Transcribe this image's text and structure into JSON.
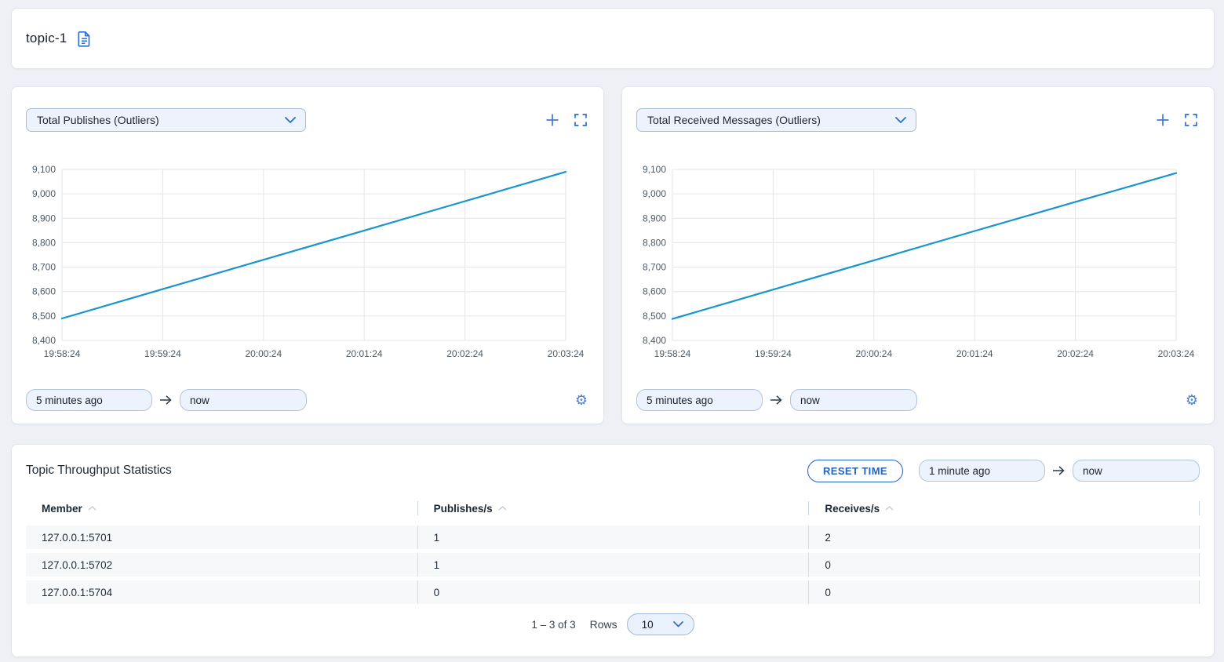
{
  "colors": {
    "accent": "#2e6fd0",
    "line": "#1795ce",
    "page_bg": "#eef0f5",
    "grid": "#e3e6ea",
    "axis_text": "#4f5a64"
  },
  "topbar": {
    "title": "topic-1"
  },
  "charts": [
    {
      "selector_label": "Total Publishes (Outliers)",
      "time_from": "5 minutes ago",
      "time_to": "now"
    },
    {
      "selector_label": "Total Received Messages (Outliers)",
      "time_from": "5 minutes ago",
      "time_to": "now"
    }
  ],
  "chart_data": [
    {
      "type": "line",
      "title": "Total Publishes (Outliers)",
      "x": [
        "19:58:24",
        "19:59:24",
        "20:00:24",
        "20:01:24",
        "20:02:24",
        "20:03:24"
      ],
      "y_ticks": [
        "9,100",
        "9,000",
        "8,900",
        "8,800",
        "8,700",
        "8,600",
        "8,500",
        "8,400"
      ],
      "ylim": [
        8400,
        9100
      ],
      "series": [
        {
          "name": "Total Publishes",
          "values": [
            8490,
            8610,
            8730,
            8850,
            8970,
            9090
          ]
        }
      ],
      "grid": true,
      "legend": "none",
      "color": "#1795ce"
    },
    {
      "type": "line",
      "title": "Total Received Messages (Outliers)",
      "x": [
        "19:58:24",
        "19:59:24",
        "20:00:24",
        "20:01:24",
        "20:02:24",
        "20:03:24"
      ],
      "y_ticks": [
        "9,100",
        "9,000",
        "8,900",
        "8,800",
        "8,700",
        "8,600",
        "8,500",
        "8,400"
      ],
      "ylim": [
        8400,
        9100
      ],
      "series": [
        {
          "name": "Total Received Messages",
          "values": [
            8488,
            8608,
            8728,
            8848,
            8967,
            9085
          ]
        }
      ],
      "grid": true,
      "legend": "none",
      "color": "#1795ce"
    }
  ],
  "stats": {
    "title": "Topic Throughput Statistics",
    "reset_button_label": "RESET TIME",
    "time_from": "1 minute ago",
    "time_to": "now",
    "table": {
      "columns": [
        "Member",
        "Publishes/s",
        "Receives/s"
      ],
      "rows": [
        [
          "127.0.0.1:5701",
          "1",
          "2"
        ],
        [
          "127.0.0.1:5702",
          "1",
          "0"
        ],
        [
          "127.0.0.1:5704",
          "0",
          "0"
        ]
      ]
    },
    "pagination": {
      "range_text": "1 – 3 of 3",
      "rows_label": "Rows",
      "rows_per_page": "10"
    }
  }
}
